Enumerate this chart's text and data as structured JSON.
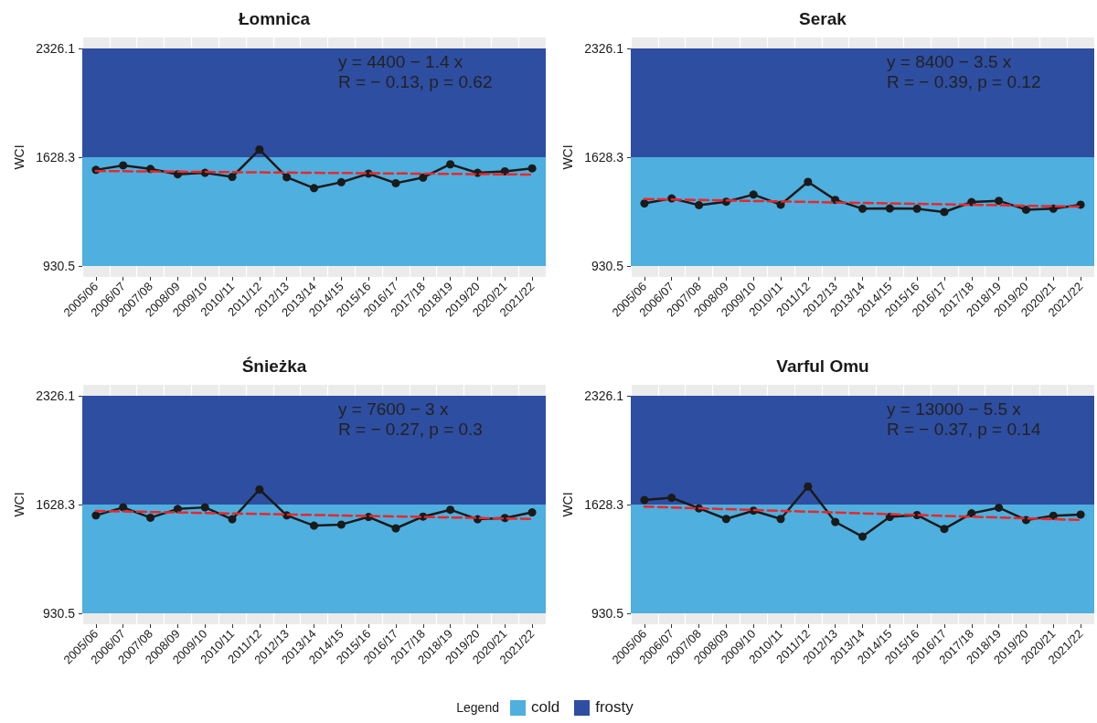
{
  "chart_data": [
    {
      "type": "line",
      "title": "Łomnica",
      "ylabel": "WCI",
      "categories": [
        "2005/06",
        "2006/07",
        "2007/08",
        "2008/09",
        "2009/10",
        "2010/11",
        "2011/12",
        "2012/13",
        "2013/14",
        "2014/15",
        "2015/16",
        "2016/17",
        "2017/18",
        "2018/19",
        "2019/20",
        "2020/21",
        "2021/22"
      ],
      "series": [
        {
          "color": "#1a1a1a",
          "marker": "circle",
          "line_style": "solid",
          "values": [
            1547,
            1576,
            1553,
            1519,
            1528,
            1502,
            1678,
            1500,
            1430,
            1468,
            1523,
            1462,
            1498,
            1583,
            1528,
            1538,
            1557
          ]
        },
        {
          "color": "#e8282b",
          "marker": "none",
          "line_style": "dashed",
          "x": [
            "2005/06",
            "2021/22"
          ],
          "values": [
            1540,
            1517
          ]
        }
      ],
      "ylim": [
        860.7,
        2395.9
      ],
      "yticks": [
        930.5,
        1628.3,
        2326.1
      ],
      "grid": "x",
      "bands": [
        {
          "axis": "y",
          "from": 930.5,
          "to": 1628.3,
          "label": "cold",
          "color": "#4fafde"
        },
        {
          "axis": "y",
          "from": 1628.3,
          "to": 2326.1,
          "label": "frosty",
          "color": "#2e4ea1"
        }
      ],
      "annotations": [
        "y = 4400 − 1.4 x",
        "R = − 0.13, p = 0.62"
      ],
      "legend": "bottom",
      "legend_title": "Legend"
    },
    {
      "type": "line",
      "title": "Serak",
      "ylabel": "WCI",
      "categories": [
        "2005/06",
        "2006/07",
        "2007/08",
        "2008/09",
        "2009/10",
        "2010/11",
        "2011/12",
        "2012/13",
        "2013/14",
        "2014/15",
        "2015/16",
        "2016/17",
        "2017/18",
        "2018/19",
        "2019/20",
        "2020/21",
        "2021/22"
      ],
      "series": [
        {
          "color": "#1a1a1a",
          "marker": "circle",
          "line_style": "solid",
          "values": [
            1332,
            1364,
            1321,
            1343,
            1389,
            1324,
            1470,
            1355,
            1298,
            1300,
            1298,
            1277,
            1341,
            1349,
            1292,
            1298,
            1324
          ]
        },
        {
          "color": "#e8282b",
          "marker": "none",
          "line_style": "dashed",
          "x": [
            "2005/06",
            "2021/22"
          ],
          "values": [
            1360,
            1311
          ]
        }
      ],
      "ylim": [
        860.7,
        2395.9
      ],
      "yticks": [
        930.5,
        1628.3,
        2326.1
      ],
      "grid": "x",
      "bands": [
        {
          "axis": "y",
          "from": 930.5,
          "to": 1628.3,
          "color": "#4fafde"
        },
        {
          "axis": "y",
          "from": 1628.3,
          "to": 2326.1,
          "color": "#2e4ea1"
        }
      ],
      "annotations": [
        "y = 8400 − 3.5 x",
        "R = − 0.39, p = 0.12"
      ]
    },
    {
      "type": "line",
      "title": "Śnieżka",
      "ylabel": "WCI",
      "categories": [
        "2005/06",
        "2006/07",
        "2007/08",
        "2008/09",
        "2009/10",
        "2010/11",
        "2011/12",
        "2012/13",
        "2013/14",
        "2014/15",
        "2015/16",
        "2016/17",
        "2017/18",
        "2018/19",
        "2019/20",
        "2020/21",
        "2021/22"
      ],
      "series": [
        {
          "color": "#1a1a1a",
          "marker": "circle",
          "line_style": "solid",
          "values": [
            1559,
            1610,
            1544,
            1600,
            1610,
            1534,
            1725,
            1559,
            1493,
            1500,
            1549,
            1476,
            1551,
            1595,
            1534,
            1542,
            1578
          ]
        },
        {
          "color": "#e8282b",
          "marker": "none",
          "line_style": "dashed",
          "x": [
            "2005/06",
            "2021/22"
          ],
          "values": [
            1587,
            1536
          ]
        }
      ],
      "ylim": [
        860.7,
        2395.9
      ],
      "yticks": [
        930.5,
        1628.3,
        2326.1
      ],
      "grid": "x",
      "bands": [
        {
          "axis": "y",
          "from": 930.5,
          "to": 1628.3,
          "color": "#4fafde"
        },
        {
          "axis": "y",
          "from": 1628.3,
          "to": 2326.1,
          "color": "#2e4ea1"
        }
      ],
      "annotations": [
        "y = 7600 − 3 x",
        "R = − 0.27, p = 0.3"
      ]
    },
    {
      "type": "line",
      "title": "Varful Omu",
      "ylabel": "WCI",
      "categories": [
        "2005/06",
        "2006/07",
        "2007/08",
        "2008/09",
        "2009/10",
        "2010/11",
        "2011/12",
        "2012/13",
        "2013/14",
        "2014/15",
        "2015/16",
        "2016/17",
        "2017/18",
        "2018/19",
        "2019/20",
        "2020/21",
        "2021/22"
      ],
      "series": [
        {
          "color": "#1a1a1a",
          "marker": "circle",
          "line_style": "solid",
          "values": [
            1657,
            1672,
            1604,
            1536,
            1589,
            1536,
            1744,
            1517,
            1423,
            1549,
            1561,
            1472,
            1572,
            1608,
            1529,
            1557,
            1564
          ]
        },
        {
          "color": "#e8282b",
          "marker": "none",
          "line_style": "dashed",
          "x": [
            "2005/06",
            "2021/22"
          ],
          "values": [
            1615,
            1529
          ]
        }
      ],
      "ylim": [
        860.7,
        2395.9
      ],
      "yticks": [
        930.5,
        1628.3,
        2326.1
      ],
      "grid": "x",
      "bands": [
        {
          "axis": "y",
          "from": 930.5,
          "to": 1628.3,
          "color": "#4fafde"
        },
        {
          "axis": "y",
          "from": 1628.3,
          "to": 2326.1,
          "color": "#2e4ea1"
        }
      ],
      "annotations": [
        "y = 13000 − 5.5 x",
        "R = − 0.37, p = 0.14"
      ]
    }
  ]
}
